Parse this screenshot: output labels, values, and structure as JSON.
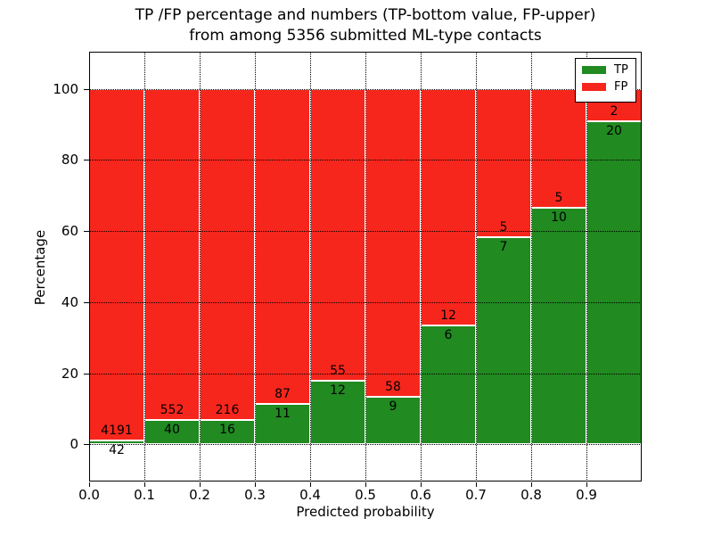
{
  "title": {
    "line1": "TP /FP percentage and numbers (TP-bottom value, FP-upper)",
    "line2": "from among 5356 submitted ML-type contacts"
  },
  "chart_data": {
    "type": "bar",
    "stacked": true,
    "normalized_to_percent": true,
    "title": "TP /FP percentage and numbers (TP-bottom value, FP-upper) from among 5356 submitted ML-type contacts",
    "total_contacts": 5356,
    "xlabel": "Predicted probability",
    "ylabel": "Percentage",
    "x_bin_edges": [
      0.0,
      0.1,
      0.2,
      0.3,
      0.4,
      0.5,
      0.6,
      0.7,
      0.8,
      0.9,
      1.0
    ],
    "x_tick_labels": [
      "0.0",
      "0.1",
      "0.2",
      "0.3",
      "0.4",
      "0.5",
      "0.6",
      "0.7",
      "0.8",
      "0.9"
    ],
    "y_ticks": [
      0,
      20,
      40,
      60,
      80,
      100
    ],
    "xlim": [
      0.0,
      1.0
    ],
    "ylim": [
      -10.5,
      110.5
    ],
    "grid": "dotted",
    "series": [
      {
        "name": "TP",
        "color": "#218a21",
        "counts": [
          42,
          40,
          16,
          11,
          12,
          9,
          6,
          7,
          10,
          20
        ]
      },
      {
        "name": "FP",
        "color": "#f7261c",
        "counts": [
          4191,
          552,
          216,
          87,
          55,
          58,
          12,
          5,
          5,
          2
        ]
      }
    ],
    "tp_percent_per_bin": [
      1.0,
      6.8,
      6.9,
      11.2,
      17.9,
      13.4,
      33.3,
      58.3,
      66.7,
      90.9
    ],
    "legend": {
      "position": "upper right",
      "entries": [
        "TP",
        "FP"
      ]
    }
  }
}
